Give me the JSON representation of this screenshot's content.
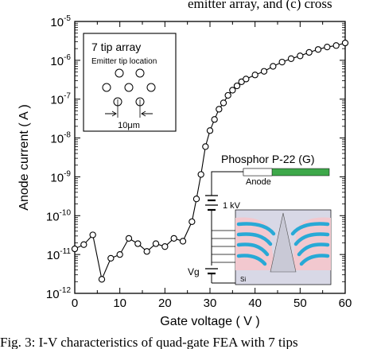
{
  "page": {
    "top_caption": "emitter array, and (c) cross",
    "bottom_caption": "Fig. 3: I-V characteristics of quad-gate FEA with 7 tips"
  },
  "chart_data": {
    "type": "line",
    "xlabel": "Gate voltage  ( V )",
    "ylabel": "Anode current  ( A )",
    "xlim": [
      0,
      60
    ],
    "ylim_log10": [
      -12,
      -5
    ],
    "y_scale": "log",
    "grid": false,
    "x_ticks": [
      0,
      10,
      20,
      30,
      40,
      50,
      60
    ],
    "y_ticks": [
      {
        "exp": -5,
        "base": "10",
        "sup": "-5"
      },
      {
        "exp": -6,
        "base": "10",
        "sup": "-6"
      },
      {
        "exp": -7,
        "base": "10",
        "sup": "-7"
      },
      {
        "exp": -8,
        "base": "10",
        "sup": "-8"
      },
      {
        "exp": -9,
        "base": "10",
        "sup": "-9"
      },
      {
        "exp": -10,
        "base": "10",
        "sup": "-10"
      },
      {
        "exp": -11,
        "base": "10",
        "sup": "-11"
      },
      {
        "exp": -12,
        "base": "10",
        "sup": "-12"
      }
    ],
    "series": [
      {
        "marker": "open-circle",
        "color": "#000000",
        "points": [
          [
            0,
            1.4e-11
          ],
          [
            2,
            1.8e-11
          ],
          [
            4,
            3.2e-11
          ],
          [
            6,
            2.3e-12
          ],
          [
            8,
            8e-12
          ],
          [
            10,
            1e-11
          ],
          [
            12,
            2.6e-11
          ],
          [
            14,
            1.9e-11
          ],
          [
            16,
            1.2e-11
          ],
          [
            18,
            1.9e-11
          ],
          [
            20,
            1.6e-11
          ],
          [
            22,
            2.6e-11
          ],
          [
            24,
            2.2e-11
          ],
          [
            26,
            7e-11
          ],
          [
            27,
            2.7e-10
          ],
          [
            28,
            1.15e-09
          ],
          [
            29,
            6e-09
          ],
          [
            30,
            1.55e-08
          ],
          [
            31,
            3e-08
          ],
          [
            32,
            5.5e-08
          ],
          [
            33,
            8e-08
          ],
          [
            34,
            1.25e-07
          ],
          [
            35,
            1.7e-07
          ],
          [
            36,
            2.2e-07
          ],
          [
            37,
            2.8e-07
          ],
          [
            38,
            3.3e-07
          ],
          [
            40,
            4.2e-07
          ],
          [
            42,
            5.2e-07
          ],
          [
            44,
            7e-07
          ],
          [
            46,
            9e-07
          ],
          [
            48,
            1.1e-06
          ],
          [
            50,
            1.3e-06
          ],
          [
            52,
            1.6e-06
          ],
          [
            54,
            1.9e-06
          ],
          [
            56,
            2.2e-06
          ],
          [
            58,
            2.4e-06
          ],
          [
            60,
            2.8e-06
          ]
        ]
      }
    ]
  },
  "inset_array": {
    "title": "7 tip array",
    "subtitle": "Emitter tip location",
    "dimension": "10μm"
  },
  "inset_device": {
    "phosphor_label": "Phosphor P-22 (G)",
    "anode_label": "Anode",
    "voltage_label": "1 kV",
    "gate_label": "Vg",
    "substrate_label": "Si",
    "colors": {
      "anode_green": "#3ea84a",
      "gate_cyan": "#29a9d6",
      "layer_pink": "#f2c8cf",
      "substrate_gray": "#d8d8e6"
    }
  }
}
